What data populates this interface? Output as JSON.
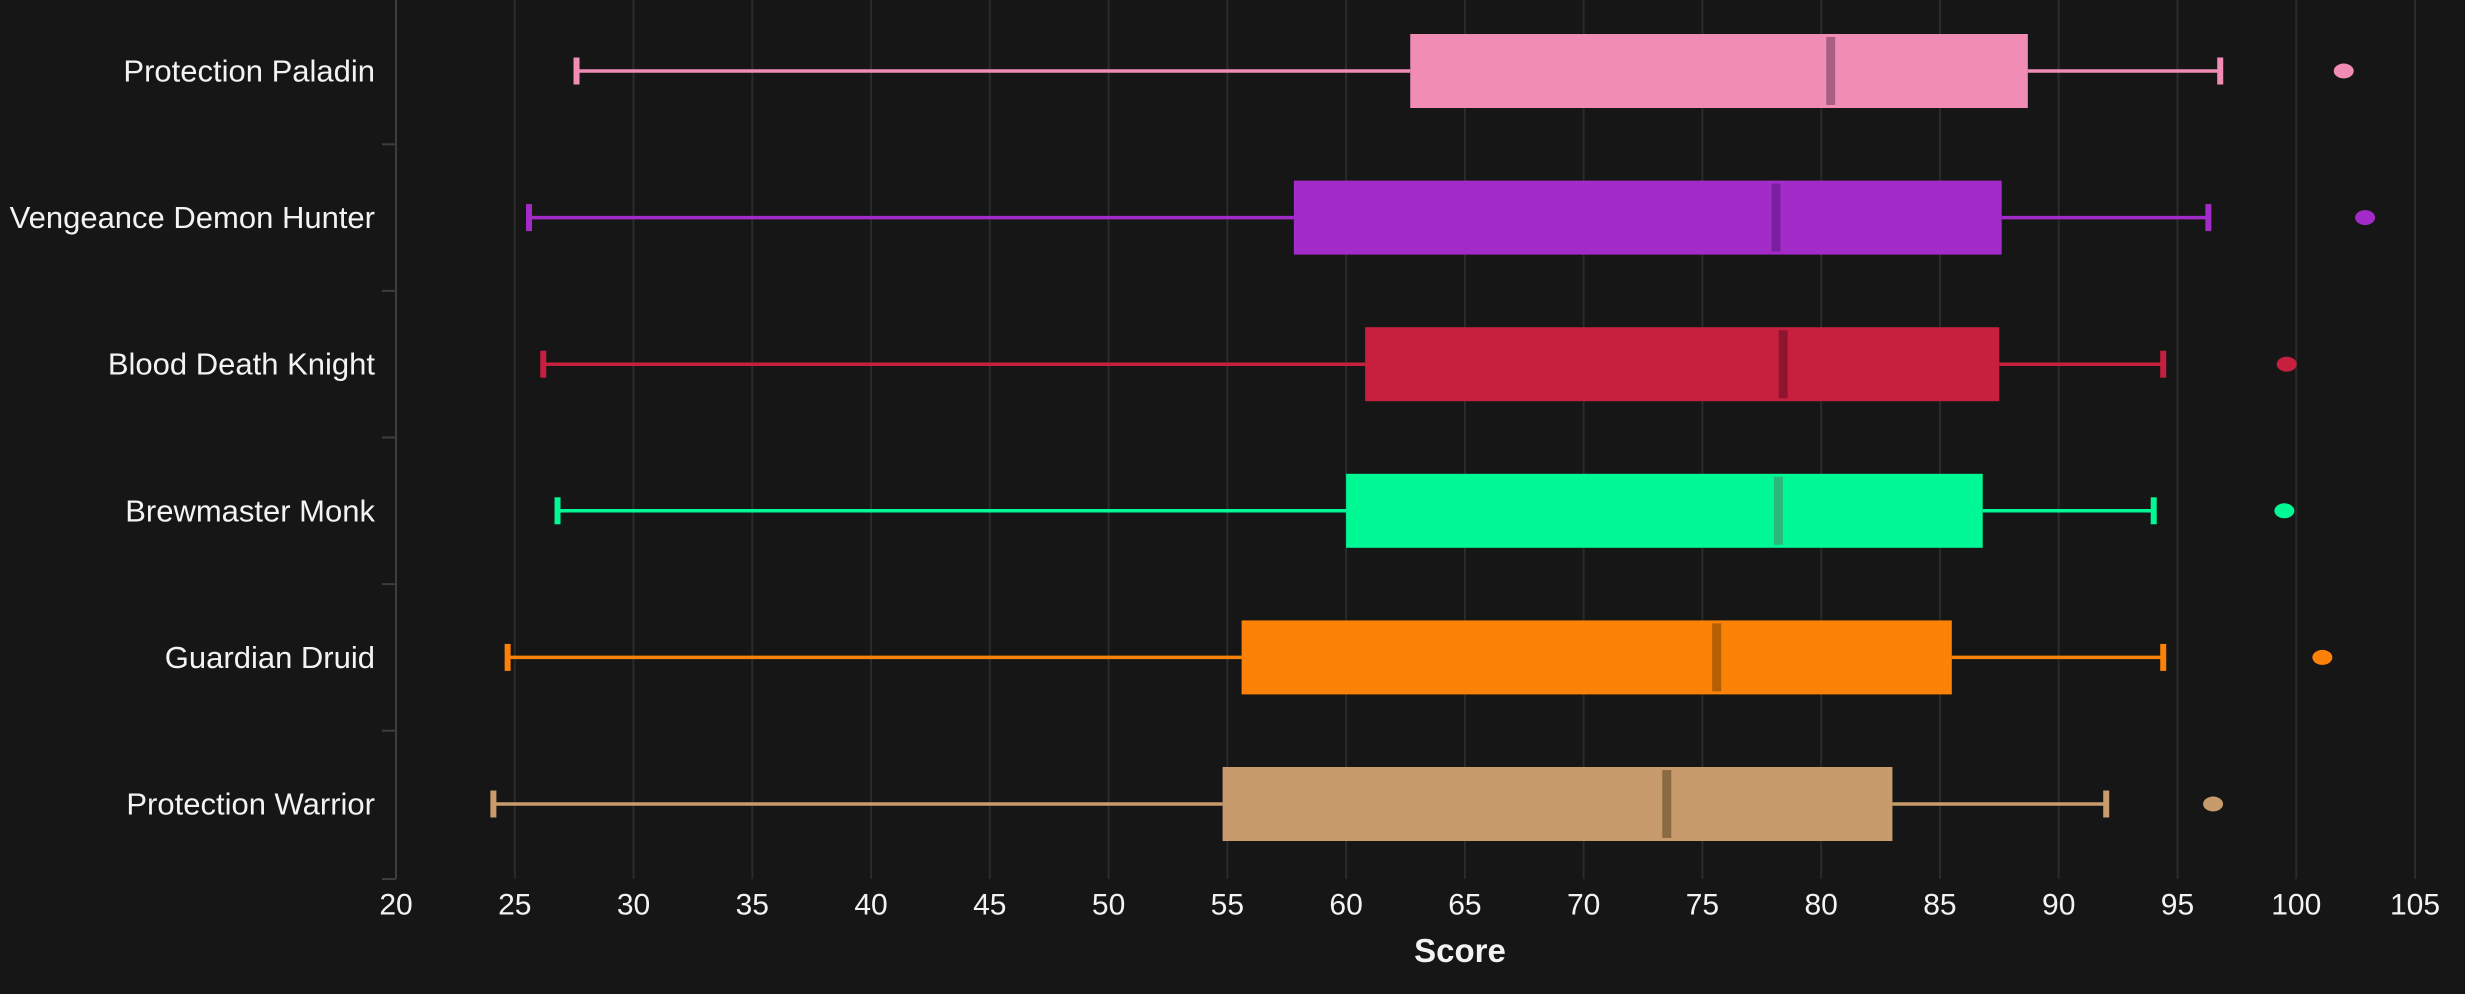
{
  "chart_data": {
    "type": "boxplot",
    "orientation": "horizontal",
    "title": "",
    "xlabel": "Score",
    "ylabel": "",
    "x_axis": {
      "min": 20,
      "max": 105,
      "tick_step": 5,
      "ticks": [
        20,
        25,
        30,
        35,
        40,
        45,
        50,
        55,
        60,
        65,
        70,
        75,
        80,
        85,
        90,
        95,
        100,
        105
      ],
      "tick_labels": [
        "20",
        "25",
        "30",
        "35",
        "40",
        "45",
        "50",
        "55",
        "60",
        "65",
        "70",
        "75",
        "80",
        "85",
        "90",
        "95",
        "100",
        "105"
      ]
    },
    "categories": [
      "Protection Paladin",
      "Vengeance Demon Hunter",
      "Blood Death Knight",
      "Brewmaster Monk",
      "Guardian Druid",
      "Protection Warrior"
    ],
    "series": [
      {
        "name": "Protection Paladin",
        "color": "#f18cb5",
        "median_color": "#aa5f80",
        "whisker_low": 27.6,
        "q1": 62.7,
        "median": 80.4,
        "q3": 88.7,
        "whisker_high": 96.8,
        "outliers": [
          102.0
        ]
      },
      {
        "name": "Vengeance Demon Hunter",
        "color": "#a32cc8",
        "median_color": "#7a1fa2",
        "whisker_low": 25.6,
        "q1": 57.8,
        "median": 78.1,
        "q3": 87.6,
        "whisker_high": 96.3,
        "outliers": [
          102.9
        ]
      },
      {
        "name": "Blood Death Knight",
        "color": "#c6203e",
        "median_color": "#8e1530",
        "whisker_low": 26.2,
        "q1": 60.8,
        "median": 78.4,
        "q3": 87.5,
        "whisker_high": 94.4,
        "outliers": [
          99.6
        ]
      },
      {
        "name": "Brewmaster Monk",
        "color": "#00f995",
        "median_color": "#2aba7c",
        "whisker_low": 26.8,
        "q1": 60.0,
        "median": 78.2,
        "q3": 86.8,
        "whisker_high": 94.0,
        "outliers": [
          99.5
        ]
      },
      {
        "name": "Guardian Druid",
        "color": "#fb8207",
        "median_color": "#b45f04",
        "whisker_low": 24.7,
        "q1": 55.6,
        "median": 75.6,
        "q3": 85.5,
        "whisker_high": 94.4,
        "outliers": [
          101.1
        ]
      },
      {
        "name": "Protection Warrior",
        "color": "#c79b6b",
        "median_color": "#8a6a41",
        "whisker_low": 24.1,
        "q1": 54.8,
        "median": 73.5,
        "q3": 83.0,
        "whisker_high": 92.0,
        "outliers": [
          96.5
        ]
      }
    ],
    "layout": {
      "grid": true,
      "legend": false,
      "background_color": "#161616",
      "gridline_color": "#2b2b2b",
      "axis_line_color": "#3d3d3d",
      "text_color": "#f5f2f3"
    }
  }
}
